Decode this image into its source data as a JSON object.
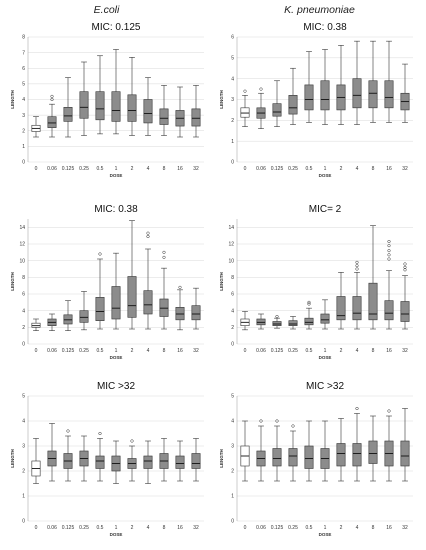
{
  "columns": [
    "E.coli",
    "K. pneumoniae"
  ],
  "chart_data": [
    {
      "type": "box",
      "title": "MIC: 0.125",
      "xlabel": "DOSE",
      "ylabel": "LENGTH",
      "categories": [
        "0",
        "0.06",
        "0.125",
        "0.25",
        "0.5",
        "1",
        "2",
        "4",
        "8",
        "16",
        "32"
      ],
      "ylim": [
        0,
        8
      ],
      "yticks": [
        0,
        1,
        2,
        3,
        4,
        5,
        6,
        7,
        8
      ],
      "grid": true,
      "boxes": [
        {
          "min": 1.6,
          "q1": 1.95,
          "median": 2.15,
          "q3": 2.35,
          "max": 2.9,
          "outliers": []
        },
        {
          "min": 1.6,
          "q1": 2.2,
          "median": 2.5,
          "q3": 2.9,
          "max": 3.7,
          "outliers": [
            4.0,
            4.2
          ]
        },
        {
          "min": 1.6,
          "q1": 2.6,
          "median": 2.95,
          "q3": 3.5,
          "max": 5.4,
          "outliers": []
        },
        {
          "min": 1.7,
          "q1": 2.8,
          "median": 3.5,
          "q3": 4.5,
          "max": 6.4,
          "outliers": []
        },
        {
          "min": 1.8,
          "q1": 2.7,
          "median": 3.4,
          "q3": 4.5,
          "max": 6.8,
          "outliers": []
        },
        {
          "min": 1.8,
          "q1": 2.6,
          "median": 3.3,
          "q3": 4.5,
          "max": 7.2,
          "outliers": []
        },
        {
          "min": 1.7,
          "q1": 2.6,
          "median": 3.3,
          "q3": 4.3,
          "max": 6.7,
          "outliers": []
        },
        {
          "min": 1.7,
          "q1": 2.5,
          "median": 3.1,
          "q3": 4.0,
          "max": 5.4,
          "outliers": []
        },
        {
          "min": 1.7,
          "q1": 2.4,
          "median": 2.8,
          "q3": 3.4,
          "max": 4.9,
          "outliers": []
        },
        {
          "min": 1.6,
          "q1": 2.3,
          "median": 2.8,
          "q3": 3.3,
          "max": 4.8,
          "outliers": []
        },
        {
          "min": 1.6,
          "q1": 2.3,
          "median": 2.8,
          "q3": 3.4,
          "max": 4.9,
          "outliers": []
        }
      ]
    },
    {
      "type": "box",
      "title": "MIC: 0.38",
      "xlabel": "DOSE",
      "ylabel": "LENGTH",
      "categories": [
        "0",
        "0.06",
        "0.125",
        "0.25",
        "0.5",
        "1",
        "2",
        "4",
        "8",
        "16",
        "32"
      ],
      "ylim": [
        0,
        6
      ],
      "yticks": [
        0,
        1,
        2,
        3,
        4,
        5,
        6
      ],
      "grid": true,
      "boxes": [
        {
          "min": 1.7,
          "q1": 2.15,
          "median": 2.35,
          "q3": 2.6,
          "max": 3.2,
          "outliers": [
            3.4
          ]
        },
        {
          "min": 1.6,
          "q1": 2.1,
          "median": 2.35,
          "q3": 2.6,
          "max": 3.3,
          "outliers": [
            3.5
          ]
        },
        {
          "min": 1.7,
          "q1": 2.2,
          "median": 2.4,
          "q3": 2.8,
          "max": 3.9,
          "outliers": []
        },
        {
          "min": 1.8,
          "q1": 2.3,
          "median": 2.6,
          "q3": 3.2,
          "max": 4.5,
          "outliers": []
        },
        {
          "min": 1.9,
          "q1": 2.5,
          "median": 3.0,
          "q3": 3.7,
          "max": 5.3,
          "outliers": []
        },
        {
          "min": 1.8,
          "q1": 2.5,
          "median": 3.0,
          "q3": 3.9,
          "max": 5.4,
          "outliers": []
        },
        {
          "min": 1.8,
          "q1": 2.5,
          "median": 3.1,
          "q3": 3.7,
          "max": 5.6,
          "outliers": []
        },
        {
          "min": 1.8,
          "q1": 2.6,
          "median": 3.2,
          "q3": 4.0,
          "max": 5.8,
          "outliers": []
        },
        {
          "min": 1.9,
          "q1": 2.6,
          "median": 3.3,
          "q3": 3.9,
          "max": 5.8,
          "outliers": []
        },
        {
          "min": 1.9,
          "q1": 2.6,
          "median": 3.1,
          "q3": 3.9,
          "max": 5.8,
          "outliers": []
        },
        {
          "min": 1.9,
          "q1": 2.5,
          "median": 2.9,
          "q3": 3.3,
          "max": 4.7,
          "outliers": []
        }
      ]
    },
    {
      "type": "box",
      "title": "MIC: 0.38",
      "xlabel": "DOSE",
      "ylabel": "LENGTH",
      "categories": [
        "0",
        "0.06",
        "0.125",
        "0.25",
        "0.5",
        "1",
        "2",
        "4",
        "8",
        "16",
        "32"
      ],
      "ylim": [
        0,
        15
      ],
      "yticks": [
        0,
        2,
        4,
        6,
        8,
        10,
        12,
        14
      ],
      "grid": true,
      "boxes": [
        {
          "min": 1.6,
          "q1": 2.0,
          "median": 2.2,
          "q3": 2.5,
          "max": 3.0,
          "outliers": []
        },
        {
          "min": 1.6,
          "q1": 2.2,
          "median": 2.6,
          "q3": 3.0,
          "max": 3.6,
          "outliers": []
        },
        {
          "min": 1.6,
          "q1": 2.4,
          "median": 2.9,
          "q3": 3.5,
          "max": 5.2,
          "outliers": []
        },
        {
          "min": 1.7,
          "q1": 2.6,
          "median": 3.2,
          "q3": 4.0,
          "max": 6.3,
          "outliers": []
        },
        {
          "min": 1.8,
          "q1": 2.8,
          "median": 3.9,
          "q3": 5.6,
          "max": 10.2,
          "outliers": [
            10.8
          ]
        },
        {
          "min": 1.8,
          "q1": 3.0,
          "median": 4.3,
          "q3": 6.9,
          "max": 10.9,
          "outliers": []
        },
        {
          "min": 1.8,
          "q1": 3.2,
          "median": 4.6,
          "q3": 8.1,
          "max": 14.8,
          "outliers": []
        },
        {
          "min": 1.8,
          "q1": 3.6,
          "median": 4.7,
          "q3": 6.4,
          "max": 11.4,
          "outliers": [
            12.9,
            13.3
          ]
        },
        {
          "min": 1.8,
          "q1": 3.3,
          "median": 4.3,
          "q3": 5.4,
          "max": 9.1,
          "outliers": [
            10.4,
            11.0
          ]
        },
        {
          "min": 1.7,
          "q1": 2.9,
          "median": 3.6,
          "q3": 4.4,
          "max": 6.5,
          "outliers": [
            6.8
          ]
        },
        {
          "min": 1.8,
          "q1": 2.9,
          "median": 3.6,
          "q3": 4.6,
          "max": 6.7,
          "outliers": []
        }
      ]
    },
    {
      "type": "box",
      "title": "MIC= 2",
      "xlabel": "DOSE",
      "ylabel": "LENGTH",
      "categories": [
        "0",
        "0.06",
        "0.125",
        "0.25",
        "0.5",
        "1",
        "2",
        "4",
        "8",
        "16",
        "32"
      ],
      "ylim": [
        0,
        15
      ],
      "yticks": [
        0,
        2,
        4,
        6,
        8,
        10,
        12,
        14
      ],
      "grid": true,
      "boxes": [
        {
          "min": 1.7,
          "q1": 2.2,
          "median": 2.6,
          "q3": 3.0,
          "max": 3.9,
          "outliers": []
        },
        {
          "min": 1.8,
          "q1": 2.3,
          "median": 2.6,
          "q3": 3.0,
          "max": 3.6,
          "outliers": []
        },
        {
          "min": 1.9,
          "q1": 2.2,
          "median": 2.4,
          "q3": 2.7,
          "max": 3.1,
          "outliers": [
            3.3
          ]
        },
        {
          "min": 1.8,
          "q1": 2.2,
          "median": 2.4,
          "q3": 2.8,
          "max": 3.3,
          "outliers": []
        },
        {
          "min": 1.8,
          "q1": 2.3,
          "median": 2.6,
          "q3": 3.1,
          "max": 4.3,
          "outliers": [
            4.8,
            5.0
          ]
        },
        {
          "min": 1.8,
          "q1": 2.5,
          "median": 2.9,
          "q3": 3.6,
          "max": 5.3,
          "outliers": []
        },
        {
          "min": 1.8,
          "q1": 2.9,
          "median": 3.4,
          "q3": 5.7,
          "max": 8.6,
          "outliers": []
        },
        {
          "min": 1.8,
          "q1": 2.9,
          "median": 3.7,
          "q3": 5.7,
          "max": 8.6,
          "outliers": [
            9.0,
            9.4,
            9.8
          ]
        },
        {
          "min": 1.8,
          "q1": 2.9,
          "median": 3.6,
          "q3": 7.3,
          "max": 14.2,
          "outliers": []
        },
        {
          "min": 1.8,
          "q1": 2.9,
          "median": 3.7,
          "q3": 5.2,
          "max": 8.8,
          "outliers": [
            10.2,
            10.7,
            11.2,
            11.8,
            12.3
          ]
        },
        {
          "min": 1.8,
          "q1": 2.7,
          "median": 3.6,
          "q3": 5.1,
          "max": 8.2,
          "outliers": [
            8.9,
            9.2,
            9.6
          ]
        }
      ]
    },
    {
      "type": "box",
      "title": "MIC >32",
      "xlabel": "DOSE",
      "ylabel": "LENGTH",
      "categories": [
        "0",
        "0.06",
        "0.125",
        "0.25",
        "0.5",
        "1",
        "2",
        "4",
        "8",
        "16",
        "32"
      ],
      "ylim": [
        0,
        5
      ],
      "yticks": [
        0,
        1,
        2,
        3,
        4,
        5
      ],
      "grid": true,
      "boxes": [
        {
          "min": 1.5,
          "q1": 1.8,
          "median": 2.1,
          "q3": 2.4,
          "max": 3.3,
          "outliers": []
        },
        {
          "min": 1.6,
          "q1": 2.2,
          "median": 2.5,
          "q3": 2.8,
          "max": 3.9,
          "outliers": []
        },
        {
          "min": 1.6,
          "q1": 2.1,
          "median": 2.4,
          "q3": 2.7,
          "max": 3.4,
          "outliers": [
            3.6
          ]
        },
        {
          "min": 1.6,
          "q1": 2.2,
          "median": 2.5,
          "q3": 2.8,
          "max": 3.4,
          "outliers": []
        },
        {
          "min": 1.6,
          "q1": 2.1,
          "median": 2.4,
          "q3": 2.6,
          "max": 3.3,
          "outliers": [
            3.5
          ]
        },
        {
          "min": 1.5,
          "q1": 2.0,
          "median": 2.3,
          "q3": 2.6,
          "max": 3.2,
          "outliers": []
        },
        {
          "min": 1.6,
          "q1": 2.1,
          "median": 2.3,
          "q3": 2.5,
          "max": 3.0,
          "outliers": [
            3.2
          ]
        },
        {
          "min": 1.5,
          "q1": 2.1,
          "median": 2.4,
          "q3": 2.6,
          "max": 3.2,
          "outliers": []
        },
        {
          "min": 1.6,
          "q1": 2.1,
          "median": 2.4,
          "q3": 2.7,
          "max": 3.3,
          "outliers": []
        },
        {
          "min": 1.6,
          "q1": 2.1,
          "median": 2.3,
          "q3": 2.6,
          "max": 3.2,
          "outliers": []
        },
        {
          "min": 1.6,
          "q1": 2.1,
          "median": 2.3,
          "q3": 2.7,
          "max": 3.3,
          "outliers": []
        }
      ]
    },
    {
      "type": "box",
      "title": "MIC >32",
      "xlabel": "DOSE",
      "ylabel": "LENGTH",
      "categories": [
        "0",
        "0.06",
        "0.125",
        "0.25",
        "0.5",
        "1",
        "2",
        "4",
        "8",
        "16",
        "32"
      ],
      "ylim": [
        0,
        5
      ],
      "yticks": [
        0,
        1,
        2,
        3,
        4,
        5
      ],
      "grid": true,
      "boxes": [
        {
          "min": 1.6,
          "q1": 2.2,
          "median": 2.6,
          "q3": 3.0,
          "max": 4.0,
          "outliers": []
        },
        {
          "min": 1.6,
          "q1": 2.2,
          "median": 2.5,
          "q3": 2.8,
          "max": 3.8,
          "outliers": [
            4.0
          ]
        },
        {
          "min": 1.6,
          "q1": 2.2,
          "median": 2.5,
          "q3": 2.9,
          "max": 3.8,
          "outliers": [
            4.0
          ]
        },
        {
          "min": 1.6,
          "q1": 2.2,
          "median": 2.6,
          "q3": 2.9,
          "max": 3.6,
          "outliers": [
            3.8
          ]
        },
        {
          "min": 1.6,
          "q1": 2.1,
          "median": 2.5,
          "q3": 3.0,
          "max": 4.0,
          "outliers": []
        },
        {
          "min": 1.6,
          "q1": 2.1,
          "median": 2.5,
          "q3": 2.9,
          "max": 4.0,
          "outliers": []
        },
        {
          "min": 1.6,
          "q1": 2.2,
          "median": 2.7,
          "q3": 3.1,
          "max": 4.1,
          "outliers": []
        },
        {
          "min": 1.6,
          "q1": 2.2,
          "median": 2.7,
          "q3": 3.1,
          "max": 4.3,
          "outliers": [
            4.5
          ]
        },
        {
          "min": 1.6,
          "q1": 2.3,
          "median": 2.7,
          "q3": 3.2,
          "max": 4.2,
          "outliers": []
        },
        {
          "min": 1.6,
          "q1": 2.2,
          "median": 2.7,
          "q3": 3.2,
          "max": 4.2,
          "outliers": [
            4.4
          ]
        },
        {
          "min": 1.6,
          "q1": 2.2,
          "median": 2.6,
          "q3": 3.2,
          "max": 4.5,
          "outliers": []
        }
      ]
    }
  ],
  "colors": {
    "box_control": "#ffffff",
    "box_treated": "#8c8c8c",
    "stroke": "#333333",
    "grid": "#d9d9d9"
  }
}
